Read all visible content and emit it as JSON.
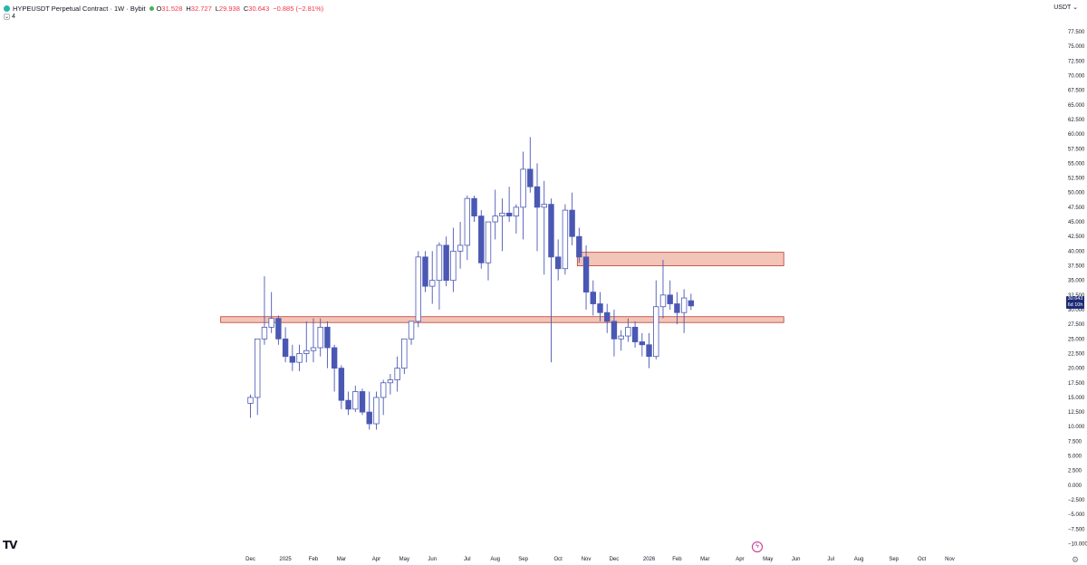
{
  "header": {
    "title": "HYPEUSDT Perpetual Contract · 1W · Bybit",
    "market_status_color": "#4caf50",
    "ohlc": [
      {
        "key": "O",
        "value": "31.528"
      },
      {
        "key": "H",
        "value": "32.727"
      },
      {
        "key": "L",
        "value": "29.938"
      },
      {
        "key": "C",
        "value": "30.643"
      }
    ],
    "change": "−0.885 (−2.81%)",
    "indicator_count": "4"
  },
  "currency": "USDT ⌄",
  "last_price": {
    "value": "30.643",
    "countdown": "6d 10h"
  },
  "colors": {
    "bull_border": "#4a58b4",
    "bear_fill": "#4a58b4",
    "zone_fill": "#f2c5b8",
    "zone_border": "#c0392b",
    "wick": "#4a58b4"
  },
  "icons": {
    "logo": "tradingview-logo",
    "settings": "gear-icon",
    "alert": "lightning-icon"
  },
  "chart_data": {
    "type": "candlestick",
    "y_range": [
      -10,
      80
    ],
    "y_ticks": [
      "77.500",
      "75.000",
      "72.500",
      "70.000",
      "67.500",
      "65.000",
      "62.500",
      "60.000",
      "57.500",
      "55.000",
      "52.500",
      "50.000",
      "47.500",
      "45.000",
      "42.500",
      "40.000",
      "37.500",
      "35.000",
      "32.500",
      "30.000",
      "27.500",
      "25.000",
      "22.500",
      "20.000",
      "17.500",
      "15.000",
      "12.500",
      "10.000",
      "7.500",
      "5.000",
      "2.500",
      "0.000",
      "−2.500",
      "−5.000",
      "−7.500",
      "−10.000"
    ],
    "x_ticks": [
      {
        "label": "Dec",
        "week": 0
      },
      {
        "label": "2025",
        "week": 5
      },
      {
        "label": "Feb",
        "week": 9
      },
      {
        "label": "Mar",
        "week": 13
      },
      {
        "label": "Apr",
        "week": 18
      },
      {
        "label": "May",
        "week": 22
      },
      {
        "label": "Jun",
        "week": 26
      },
      {
        "label": "Jul",
        "week": 31
      },
      {
        "label": "Aug",
        "week": 35
      },
      {
        "label": "Sep",
        "week": 39
      },
      {
        "label": "Oct",
        "week": 44
      },
      {
        "label": "Nov",
        "week": 48
      },
      {
        "label": "Dec",
        "week": 52
      },
      {
        "label": "2026",
        "week": 57
      },
      {
        "label": "Feb",
        "week": 61
      },
      {
        "label": "Mar",
        "week": 65
      },
      {
        "label": "Apr",
        "week": 70
      },
      {
        "label": "May",
        "week": 74
      },
      {
        "label": "Jun",
        "week": 78
      },
      {
        "label": "Jul",
        "week": 83
      },
      {
        "label": "Aug",
        "week": 87
      },
      {
        "label": "Sep",
        "week": 92
      },
      {
        "label": "Oct",
        "week": 96
      },
      {
        "label": "Nov",
        "week": 100
      }
    ],
    "zones": [
      {
        "from_week": -4,
        "to_week": 76,
        "low": 27.8,
        "high": 28.8
      },
      {
        "from_week": 47,
        "to_week": 76,
        "low": 37.5,
        "high": 39.8
      }
    ],
    "candles": [
      [
        14.0,
        15.5,
        11.5,
        15.0
      ],
      [
        15.0,
        25.0,
        12.0,
        25.0
      ],
      [
        25.0,
        35.7,
        24.0,
        27.0
      ],
      [
        27.0,
        33.0,
        26.0,
        28.5
      ],
      [
        28.5,
        29.0,
        24.0,
        25.0
      ],
      [
        25.0,
        27.0,
        21.0,
        22.0
      ],
      [
        22.0,
        24.0,
        19.5,
        21.0
      ],
      [
        21.0,
        24.0,
        19.5,
        22.5
      ],
      [
        22.5,
        28.0,
        21.0,
        23.0
      ],
      [
        23.0,
        28.5,
        21.0,
        23.5
      ],
      [
        23.5,
        28.5,
        22.0,
        27.0
      ],
      [
        27.0,
        28.0,
        20.0,
        23.5
      ],
      [
        23.5,
        24.0,
        16.0,
        20.0
      ],
      [
        20.0,
        20.5,
        13.0,
        14.5
      ],
      [
        14.5,
        16.0,
        12.0,
        13.0
      ],
      [
        13.0,
        17.0,
        12.5,
        16.0
      ],
      [
        16.0,
        16.5,
        12.0,
        12.5
      ],
      [
        12.5,
        16.0,
        9.5,
        10.5
      ],
      [
        10.5,
        16.0,
        9.5,
        15.0
      ],
      [
        15.0,
        18.0,
        12.0,
        17.5
      ],
      [
        17.5,
        19.0,
        15.5,
        18.0
      ],
      [
        18.0,
        22.0,
        16.0,
        20.0
      ],
      [
        20.0,
        25.0,
        19.0,
        25.0
      ],
      [
        25.0,
        28.0,
        24.0,
        28.0
      ],
      [
        28.0,
        40.0,
        27.0,
        39.0
      ],
      [
        39.0,
        40.0,
        33.0,
        34.0
      ],
      [
        34.0,
        40.0,
        31.0,
        35.0
      ],
      [
        35.0,
        41.5,
        30.0,
        41.0
      ],
      [
        41.0,
        42.5,
        34.0,
        35.0
      ],
      [
        35.0,
        44.0,
        33.0,
        40.0
      ],
      [
        40.0,
        45.0,
        37.0,
        41.0
      ],
      [
        41.0,
        49.5,
        38.5,
        49.0
      ],
      [
        49.0,
        49.5,
        45.0,
        46.0
      ],
      [
        46.0,
        47.0,
        37.0,
        38.0
      ],
      [
        38.0,
        45.0,
        35.0,
        45.0
      ],
      [
        45.0,
        50.5,
        42.0,
        46.0
      ],
      [
        46.0,
        49.0,
        40.0,
        46.5
      ],
      [
        46.5,
        51.0,
        45.0,
        46.0
      ],
      [
        46.0,
        48.0,
        43.0,
        47.5
      ],
      [
        47.5,
        57.0,
        42.0,
        54.0
      ],
      [
        54.0,
        59.5,
        50.0,
        51.0
      ],
      [
        51.0,
        55.0,
        40.0,
        47.5
      ],
      [
        47.5,
        52.0,
        36.0,
        48.0
      ],
      [
        48.0,
        49.0,
        21.0,
        39.0
      ],
      [
        39.0,
        42.0,
        35.0,
        37.0
      ],
      [
        37.0,
        48.0,
        36.0,
        47.0
      ],
      [
        47.0,
        50.0,
        41.0,
        42.5
      ],
      [
        42.5,
        44.0,
        38.0,
        39.0
      ],
      [
        39.0,
        41.0,
        30.0,
        33.0
      ],
      [
        33.0,
        35.0,
        29.0,
        31.0
      ],
      [
        31.0,
        33.0,
        28.0,
        29.5
      ],
      [
        29.5,
        31.0,
        26.0,
        28.0
      ],
      [
        28.0,
        30.0,
        22.0,
        25.0
      ],
      [
        25.0,
        26.5,
        23.0,
        25.5
      ],
      [
        25.5,
        28.5,
        24.5,
        27.0
      ],
      [
        27.0,
        28.0,
        23.5,
        24.5
      ],
      [
        24.5,
        26.0,
        22.0,
        24.0
      ],
      [
        24.0,
        26.0,
        20.0,
        22.0
      ],
      [
        22.0,
        35.0,
        21.5,
        30.5
      ],
      [
        30.5,
        38.5,
        28.5,
        32.5
      ],
      [
        32.5,
        35.0,
        30.0,
        31.0
      ],
      [
        31.0,
        33.0,
        27.5,
        29.5
      ],
      [
        29.5,
        33.5,
        26.0,
        32.0
      ],
      [
        31.528,
        32.727,
        29.938,
        30.643
      ]
    ]
  }
}
